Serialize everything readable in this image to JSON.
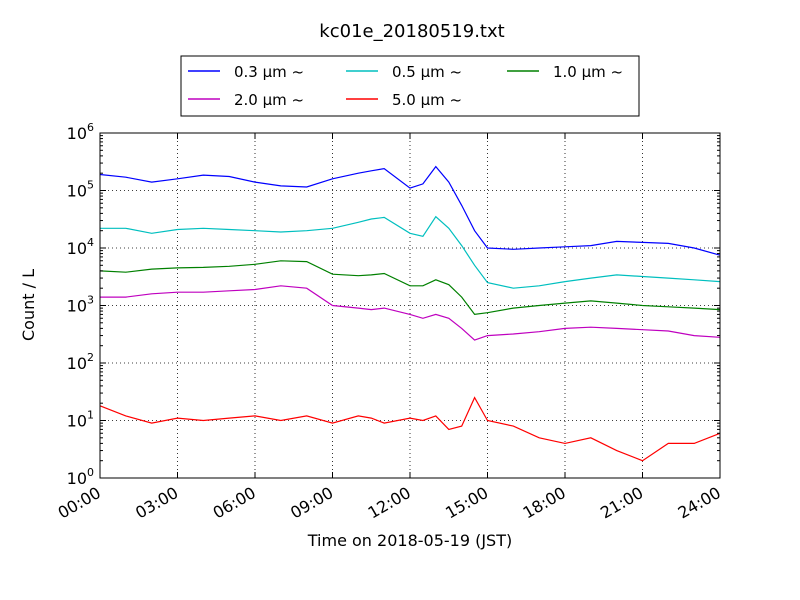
{
  "chart_data": {
    "type": "line",
    "title": "kc01e_20180519.txt",
    "xlabel": "Time on 2018-05-19 (JST)",
    "ylabel": "Count / L",
    "y_scale": "log",
    "ylim": [
      1,
      1000000
    ],
    "xlim": [
      "00:00",
      "24:00"
    ],
    "grid": true,
    "legend_position": "top-center",
    "x_ticks": [
      "00:00",
      "03:00",
      "06:00",
      "09:00",
      "12:00",
      "15:00",
      "18:00",
      "21:00",
      "24:00"
    ],
    "y_ticks": [
      {
        "base": "10",
        "exp": "0"
      },
      {
        "base": "10",
        "exp": "1"
      },
      {
        "base": "10",
        "exp": "2"
      },
      {
        "base": "10",
        "exp": "3"
      },
      {
        "base": "10",
        "exp": "4"
      },
      {
        "base": "10",
        "exp": "5"
      },
      {
        "base": "10",
        "exp": "6"
      }
    ],
    "x_hours": [
      0,
      1,
      2,
      3,
      4,
      5,
      6,
      7,
      8,
      9,
      10,
      10.5,
      11,
      12,
      12.5,
      13,
      13.5,
      14,
      14.5,
      15,
      16,
      17,
      18,
      19,
      20,
      21,
      22,
      23,
      24
    ],
    "series": [
      {
        "name": "0.3 μm ~",
        "color": "#0000ff",
        "values": [
          190000,
          170000,
          140000,
          160000,
          185000,
          175000,
          140000,
          120000,
          115000,
          160000,
          200000,
          220000,
          240000,
          110000,
          130000,
          260000,
          140000,
          55000,
          20000,
          10000,
          9500,
          10000,
          10500,
          11000,
          13000,
          12500,
          12000,
          10000,
          7500
        ]
      },
      {
        "name": "0.5 μm ~",
        "color": "#00bfbf",
        "values": [
          22000,
          22000,
          18000,
          21000,
          22000,
          21000,
          20000,
          19000,
          20000,
          22000,
          28000,
          32000,
          34000,
          18000,
          16000,
          35000,
          22000,
          11000,
          5000,
          2500,
          2000,
          2200,
          2600,
          3000,
          3400,
          3200,
          3000,
          2800,
          2600
        ]
      },
      {
        "name": "1.0 μm ~",
        "color": "#008000",
        "values": [
          4000,
          3800,
          4300,
          4500,
          4600,
          4800,
          5200,
          6000,
          5800,
          3500,
          3300,
          3400,
          3600,
          2200,
          2200,
          2800,
          2300,
          1400,
          700,
          750,
          900,
          1000,
          1100,
          1200,
          1100,
          1000,
          950,
          900,
          850
        ]
      },
      {
        "name": "2.0 μm ~",
        "color": "#bf00bf",
        "values": [
          1400,
          1400,
          1600,
          1700,
          1700,
          1800,
          1900,
          2200,
          2000,
          1000,
          900,
          850,
          900,
          700,
          600,
          700,
          600,
          400,
          250,
          300,
          320,
          350,
          400,
          420,
          400,
          380,
          360,
          300,
          280
        ]
      },
      {
        "name": "5.0 μm ~",
        "color": "#ff0000",
        "values": [
          18,
          12,
          9,
          11,
          10,
          11,
          12,
          10,
          12,
          9,
          12,
          11,
          9,
          11,
          10,
          12,
          7,
          8,
          25,
          10,
          8,
          5,
          4,
          5,
          3,
          2,
          4,
          4,
          6
        ]
      }
    ]
  }
}
